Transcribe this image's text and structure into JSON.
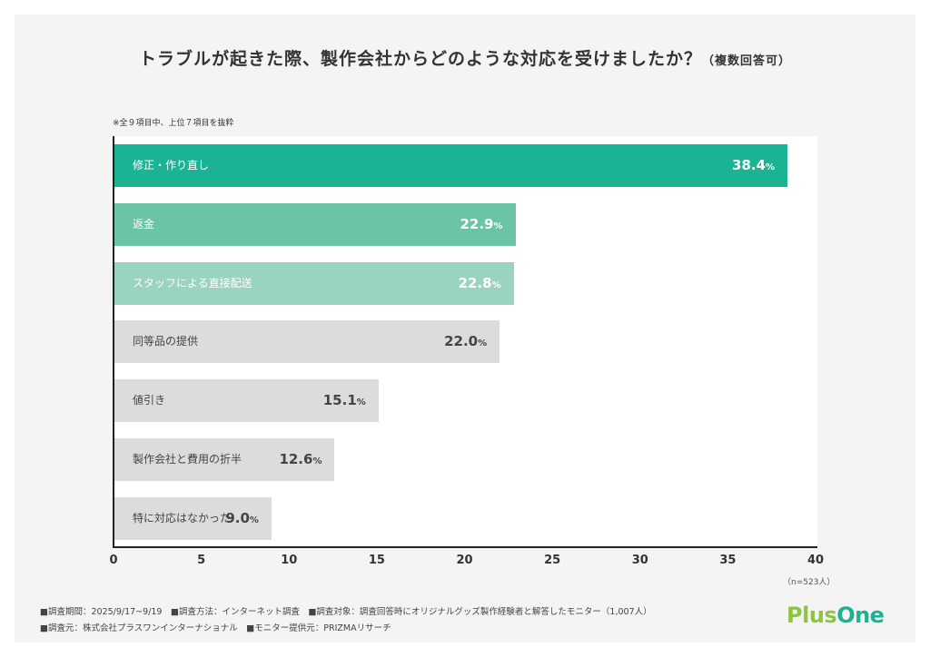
{
  "chart_data": {
    "type": "bar",
    "orientation": "horizontal",
    "title": "トラブルが起きた際、製作会社からどのような対応を受けましたか？",
    "title_suffix": "（複数回答可）",
    "note": "※全９項目中、上位７項目を抜粋",
    "categories": [
      "修正・作り直し",
      "返金",
      "スタッフによる直接配送",
      "同等品の提供",
      "値引き",
      "製作会社と費用の折半",
      "特に対応はなかった"
    ],
    "values": [
      38.4,
      22.9,
      22.8,
      22.0,
      15.1,
      12.6,
      9.0
    ],
    "value_labels": [
      "38.4",
      "22.9",
      "22.8",
      "22.0",
      "15.1",
      "12.6",
      "9.0"
    ],
    "unit": "%",
    "colors": [
      "#1ab393",
      "#6bc4a5",
      "#9ad3c0",
      "#dcdcdc",
      "#dcdcdc",
      "#dcdcdc",
      "#dcdcdc"
    ],
    "xlim": [
      0,
      40
    ],
    "xticks": [
      "0",
      "5",
      "10",
      "15",
      "20",
      "25",
      "30",
      "35",
      "40"
    ],
    "grid": false,
    "sample": "（n=523人）"
  },
  "footer": {
    "line1": "■調査期間：2025/9/17~9/19　■調査方法：インターネット調査　■調査対象：調査回答時にオリジナルグッズ製作経験者と解答したモニター（1,007人）",
    "line2": "■調査元：株式会社プラスワンインターナショナル　■モニター提供元：PRIZMAリサーチ"
  },
  "logo": {
    "part1": "Plus",
    "part2": "One",
    "color1": "#8cc63f",
    "color2": "#1ab393"
  }
}
